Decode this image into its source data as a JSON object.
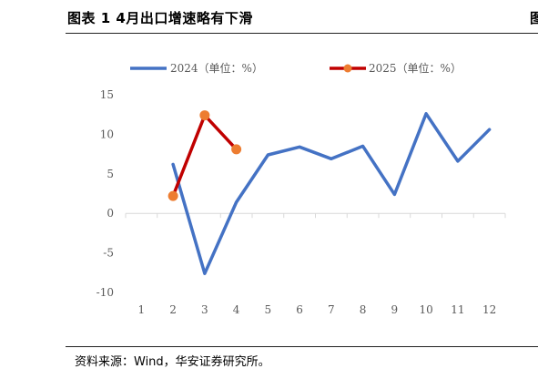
{
  "header": {
    "title": "图表 1 4月出口增速略有下滑",
    "edge_glyph": "图"
  },
  "footer": {
    "source": "资料来源：Wind，华安证券研究所。"
  },
  "chart_data": {
    "type": "line",
    "title": "",
    "xlabel": "",
    "ylabel": "",
    "categories": [
      "1",
      "2",
      "3",
      "4",
      "5",
      "6",
      "7",
      "8",
      "9",
      "10",
      "11",
      "12"
    ],
    "ylim": [
      -10,
      15
    ],
    "yticks": [
      -10,
      -5,
      0,
      5,
      10,
      15
    ],
    "grid": false,
    "legend_position": "top",
    "series": [
      {
        "name": "2024（单位：%）",
        "color": "#4472C4",
        "markers": false,
        "x": [
          2,
          3,
          4,
          5,
          6,
          7,
          8,
          9,
          10,
          11,
          12
        ],
        "values": [
          6.2,
          -7.6,
          1.4,
          7.4,
          8.4,
          6.9,
          8.5,
          2.4,
          12.6,
          6.6,
          10.6
        ]
      },
      {
        "name": "2025（单位：%）",
        "color": "#C00000",
        "marker_color": "#ED7D31",
        "markers": true,
        "x": [
          2,
          3,
          4
        ],
        "values": [
          2.2,
          12.4,
          8.1
        ]
      }
    ]
  }
}
